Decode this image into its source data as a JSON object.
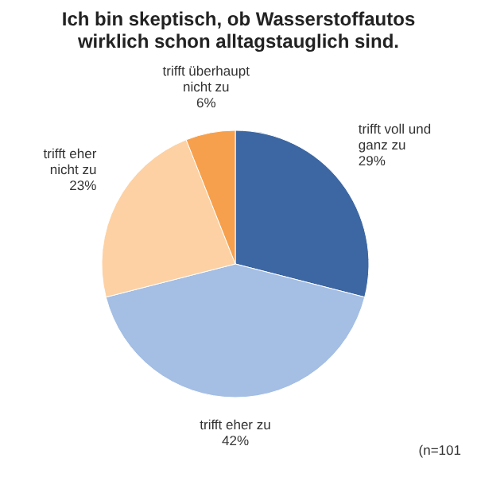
{
  "chart_data": {
    "type": "pie",
    "title": "Ich bin skeptisch, ob Wasserstoffautos wirklich schon alltagstauglich sind.",
    "categories": [
      "trifft voll und ganz zu",
      "trifft eher zu",
      "trifft eher nicht zu",
      "trifft überhaupt nicht zu"
    ],
    "values": [
      29,
      42,
      23,
      6
    ],
    "value_labels": [
      "29%",
      "42%",
      "23%",
      "6%"
    ],
    "colors": [
      "#3d67a3",
      "#a4bee4",
      "#fdd1a3",
      "#f6a04d"
    ],
    "annotations": [
      "(n=101"
    ]
  }
}
